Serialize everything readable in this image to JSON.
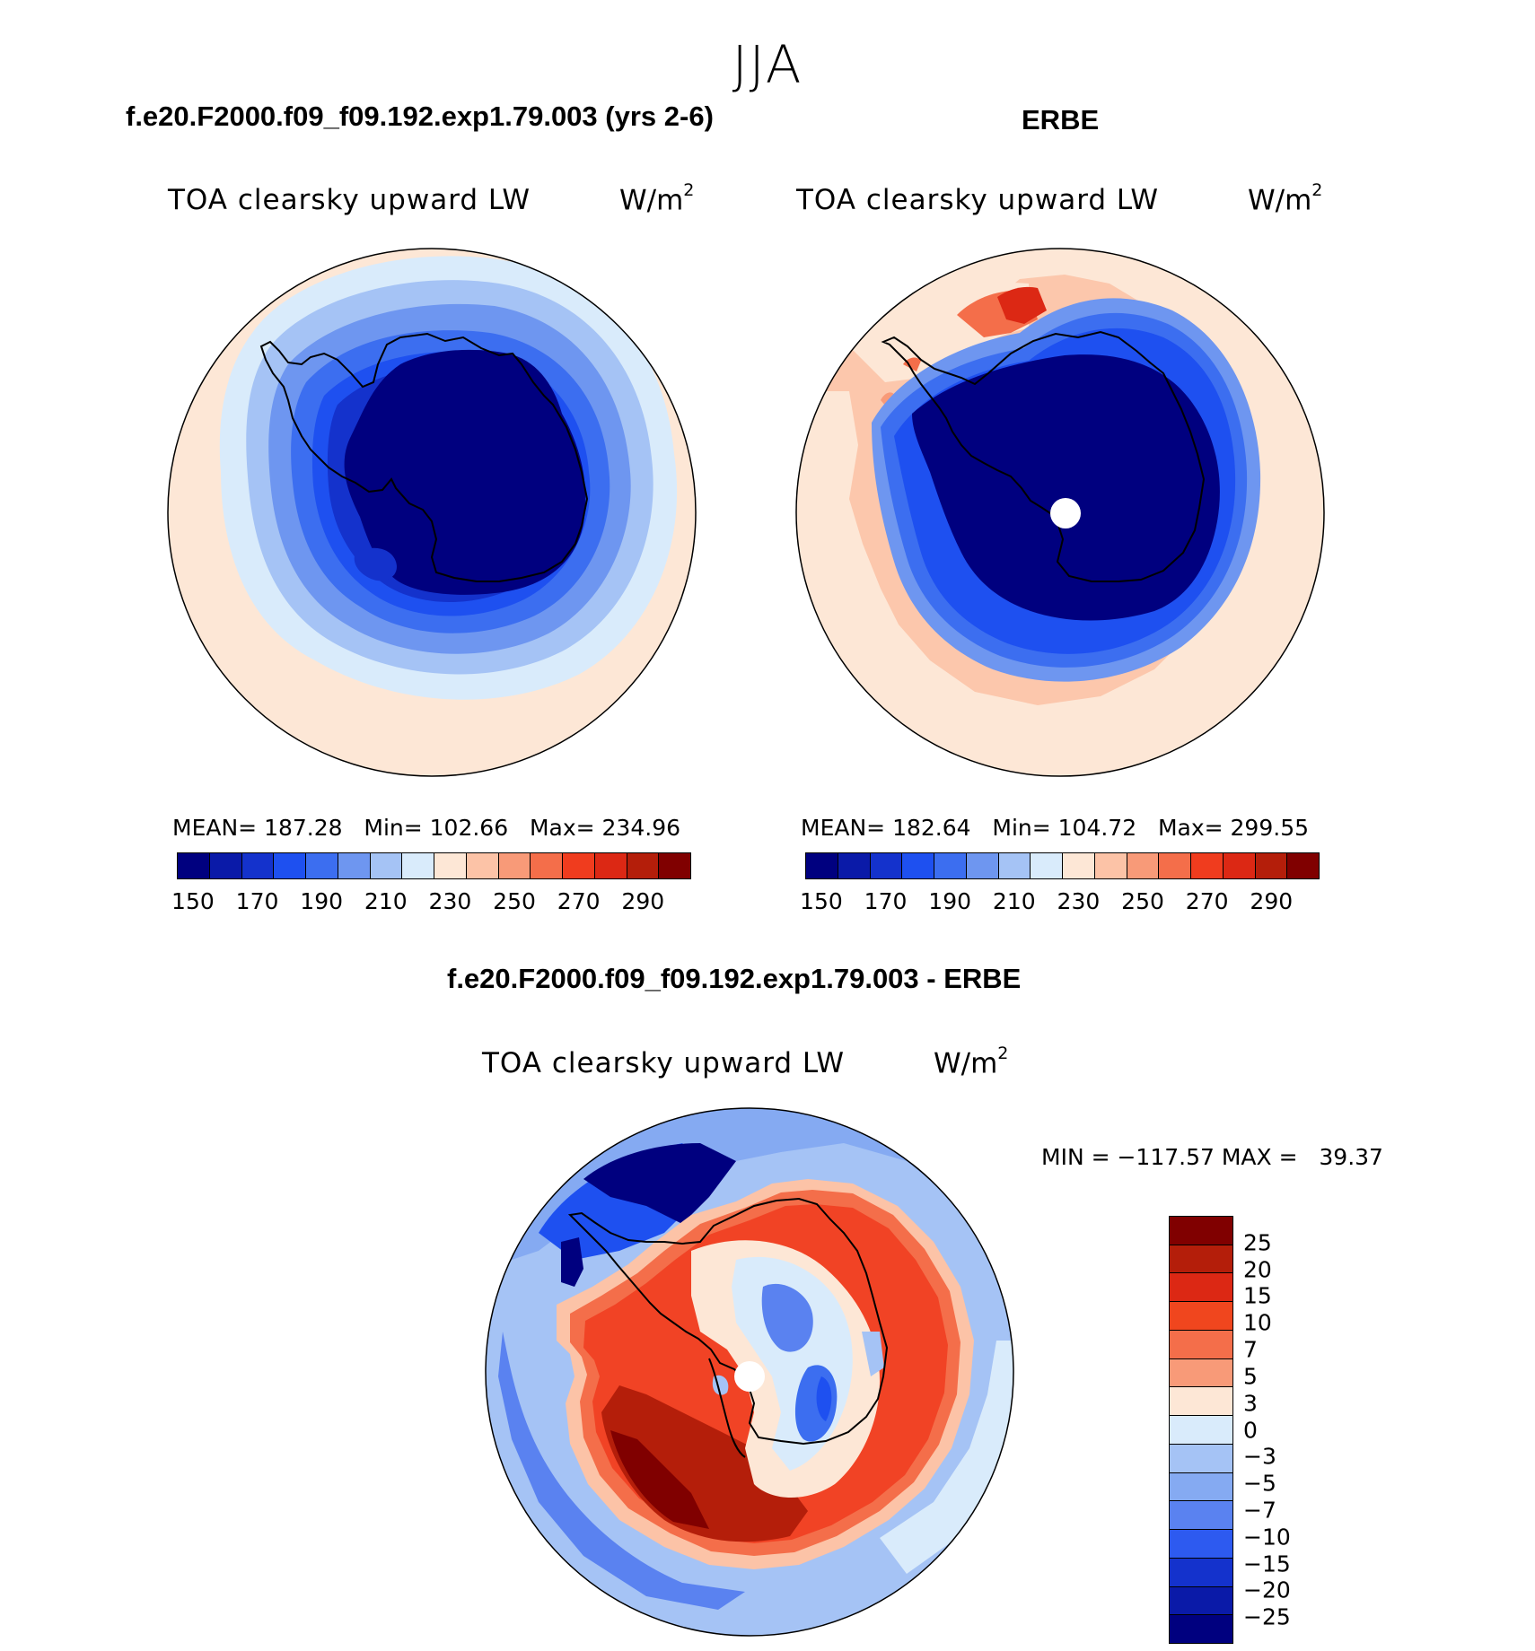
{
  "season": "JJA",
  "panels": {
    "model": {
      "case_title": "f.e20.F2000.f09_f09.192.exp1.79.003 (yrs 2-6)",
      "var_title": "TOA clearsky upward LW",
      "units": "W/m",
      "units_sup": "2",
      "stats": "MEAN= 187.28   Min= 102.66   Max= 234.96"
    },
    "obs": {
      "case_title": "ERBE",
      "var_title": "TOA clearsky upward LW",
      "units": "W/m",
      "units_sup": "2",
      "stats": "MEAN= 182.64   Min= 104.72   Max= 299.55"
    },
    "diff": {
      "case_title": "f.e20.F2000.f09_f09.192.exp1.79.003 - ERBE",
      "var_title": "TOA clearsky upward LW",
      "units": "W/m",
      "units_sup": "2",
      "minmax": "MIN = −117.57 MAX =   39.37"
    }
  },
  "colorbar_abs": {
    "colors": [
      "#00007f",
      "#0a1aa8",
      "#1432cc",
      "#1e50f0",
      "#3c6ef0",
      "#6e96f0",
      "#a5c3f5",
      "#d9ebfb",
      "#fde7d6",
      "#fcc3a7",
      "#f89a78",
      "#f46e4a",
      "#f03c1e",
      "#dc2814",
      "#b41e0a",
      "#800000"
    ],
    "tick_labels": [
      "150",
      "170",
      "190",
      "210",
      "230",
      "250",
      "270",
      "290"
    ]
  },
  "colorbar_diff": {
    "colors": [
      "#800000",
      "#b41e0a",
      "#dc2814",
      "#f0461e",
      "#f46e4a",
      "#f89a78",
      "#fde7d6",
      "#d9ebfb",
      "#a5c3f5",
      "#85aaf2",
      "#5a82f0",
      "#2d5af0",
      "#1432cc",
      "#0a1aa8",
      "#00007f"
    ],
    "labels": [
      "25",
      "20",
      "15",
      "10",
      "7",
      "5",
      "3",
      "0",
      "−3",
      "−5",
      "−7",
      "−10",
      "−15",
      "−20",
      "−25"
    ]
  }
}
